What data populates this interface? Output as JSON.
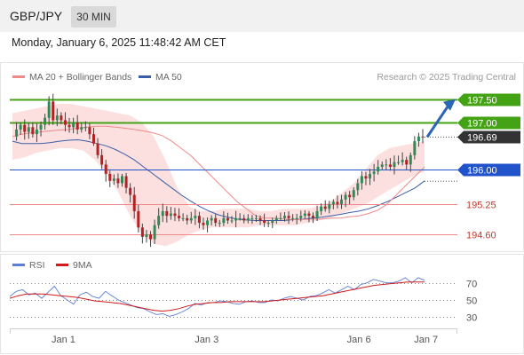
{
  "header": {
    "symbol": "GBP/JPY",
    "timeframe": "30 MIN",
    "datetime": "Monday, January 6, 2025 11:48:42 AM CET"
  },
  "colors": {
    "ma20": "#f08a8a",
    "ma50": "#3b5ea8",
    "bollinger_fill": "#fcdede",
    "candle_up": "#2e8b57",
    "candle_down": "#b22222",
    "resistance": "#44a315",
    "support_blue": "#2052c9",
    "support_red": "#f08a8a",
    "rsi": "#5b7fd6",
    "rsi_ma": "#d11a1a",
    "arrow": "#2a66b3"
  },
  "legend": {
    "ma20": "MA 20 + Bollinger Bands",
    "ma50": "MA 50",
    "credit": "Research © 2025 Trading Central"
  },
  "levels": [
    {
      "value": 197.5,
      "label": "197.50",
      "style": "filled-green"
    },
    {
      "value": 197.0,
      "label": "197.00",
      "style": "filled-green"
    },
    {
      "value": 196.69,
      "label": "196.69",
      "style": "filled-dark"
    },
    {
      "value": 196.0,
      "label": "196.00",
      "style": "filled-blue"
    },
    {
      "value": 195.25,
      "label": "195.25",
      "style": "text-red"
    },
    {
      "value": 194.6,
      "label": "194.60",
      "style": "text-red"
    }
  ],
  "rsi_panel": {
    "legend_rsi": "RSI",
    "legend_ma": "9MA",
    "ticks": [
      "70",
      "50",
      "30"
    ]
  },
  "x_axis": {
    "labels": [
      "Jan 1",
      "Jan 3",
      "Jan 6",
      "Jan 7"
    ]
  },
  "chart_data": {
    "type": "candlestick",
    "ylim": [
      194.3,
      197.8
    ],
    "forecast": {
      "from": 196.69,
      "to": 197.5
    },
    "price_path": [
      196.7,
      196.85,
      196.95,
      196.8,
      196.9,
      196.75,
      196.85,
      196.95,
      197.1,
      197.45,
      197.05,
      197.15,
      197.05,
      196.95,
      196.9,
      197.0,
      196.85,
      196.9,
      196.9,
      196.75,
      196.55,
      196.3,
      196.1,
      195.9,
      195.75,
      195.8,
      195.7,
      195.85,
      195.6,
      195.45,
      195.1,
      194.75,
      194.55,
      194.6,
      194.5,
      194.8,
      195.0,
      195.1,
      195.0,
      195.05,
      195.0,
      194.95,
      194.95,
      194.9,
      194.95,
      195.0,
      194.85,
      194.8,
      194.9,
      194.95,
      194.85,
      194.85,
      194.95,
      194.9,
      194.9,
      194.95,
      194.95,
      194.9,
      194.95,
      194.95,
      194.95,
      194.9,
      194.85,
      194.85,
      194.9,
      194.95,
      194.95,
      195.0,
      194.95,
      194.95,
      194.95,
      195.0,
      195.05,
      195.0,
      194.95,
      195.1,
      195.2,
      195.15,
      195.25,
      195.3,
      195.25,
      195.35,
      195.45,
      195.4,
      195.55,
      195.7,
      195.85,
      195.8,
      195.9,
      195.95,
      196.05,
      196.1,
      196.1,
      196.05,
      196.15,
      196.15,
      196.2,
      196.1,
      196.3,
      196.6,
      196.7,
      196.69
    ],
    "ma20": [
      196.7,
      196.75,
      196.78,
      196.8,
      196.82,
      196.84,
      196.85,
      196.88,
      196.9,
      196.92,
      196.92,
      196.9,
      196.88,
      196.85,
      196.82,
      196.78,
      196.72,
      196.6,
      196.45,
      196.3,
      196.1,
      195.9,
      195.7,
      195.5,
      195.3,
      195.15,
      195.0,
      194.95,
      194.95,
      194.93,
      194.92,
      194.92,
      194.93,
      194.93,
      194.95,
      194.95,
      194.98,
      195.0,
      195.05,
      195.12,
      195.25,
      195.45,
      195.65,
      195.85,
      196.05
    ],
    "ma50": [
      196.6,
      196.55,
      196.55,
      196.55,
      196.57,
      196.6,
      196.62,
      196.63,
      196.6,
      196.55,
      196.5,
      196.42,
      196.32,
      196.2,
      196.05,
      195.9,
      195.75,
      195.6,
      195.45,
      195.32,
      195.2,
      195.1,
      195.02,
      194.97,
      194.93,
      194.91,
      194.9,
      194.9,
      194.9,
      194.9,
      194.92,
      194.93,
      194.95,
      194.97,
      195.0,
      195.03,
      195.07,
      195.1,
      195.15,
      195.22,
      195.3,
      195.4,
      195.5,
      195.6,
      195.75
    ],
    "bollinger_upper": [
      197.2,
      197.25,
      197.3,
      197.35,
      197.4,
      197.4,
      197.35,
      197.3,
      197.25,
      197.2,
      197.15,
      197.0,
      196.7,
      196.2,
      195.6,
      195.2,
      195.1,
      195.1,
      195.15,
      195.15,
      195.15,
      195.1,
      195.1,
      195.15,
      195.15,
      195.15,
      195.2,
      195.3,
      195.5,
      195.7,
      196.0,
      196.3,
      196.45,
      196.5,
      196.55,
      196.6
    ],
    "bollinger_lower": [
      196.2,
      196.25,
      196.35,
      196.4,
      196.45,
      196.45,
      196.4,
      196.2,
      195.9,
      195.5,
      195.0,
      194.6,
      194.4,
      194.35,
      194.45,
      194.6,
      194.7,
      194.75,
      194.75,
      194.75,
      194.75,
      194.8,
      194.8,
      194.8,
      194.8,
      194.85,
      194.9,
      194.95,
      195.05,
      195.15,
      195.25,
      195.4,
      195.55,
      195.7,
      195.85,
      195.95
    ],
    "rsi": [
      54,
      60,
      62,
      56,
      58,
      52,
      59,
      66,
      55,
      50,
      45,
      56,
      59,
      54,
      52,
      60,
      55,
      50,
      47,
      44,
      41,
      40,
      36,
      33,
      34,
      31,
      33,
      36,
      40,
      46,
      44,
      47,
      47,
      49,
      48,
      46,
      45,
      48,
      49,
      47,
      47,
      50,
      49,
      52,
      54,
      52,
      50,
      54,
      55,
      58,
      62,
      58,
      62,
      66,
      62,
      68,
      70,
      74,
      72,
      70,
      70,
      72,
      76,
      70,
      76,
      73
    ],
    "rsi_ma": [
      52,
      55,
      57,
      57,
      57,
      56,
      55,
      54,
      53,
      51,
      49,
      48,
      47,
      46,
      44,
      42,
      40,
      38,
      37,
      38,
      40,
      43,
      45,
      46,
      47,
      47,
      48,
      48,
      48,
      48,
      48,
      49,
      50,
      51,
      52,
      53,
      54,
      55,
      57,
      59,
      61,
      63,
      65,
      67,
      68,
      69,
      70,
      71,
      71,
      71
    ],
    "rsi_ylim": [
      20,
      80
    ],
    "rsi_ticks": [
      70,
      50,
      30
    ],
    "x_ticks": [
      {
        "label": "Jan 1",
        "pos": 0.12
      },
      {
        "label": "Jan 3",
        "pos": 0.44
      },
      {
        "label": "Jan 6",
        "pos": 0.78
      },
      {
        "label": "Jan 7",
        "pos": 0.93
      }
    ]
  }
}
